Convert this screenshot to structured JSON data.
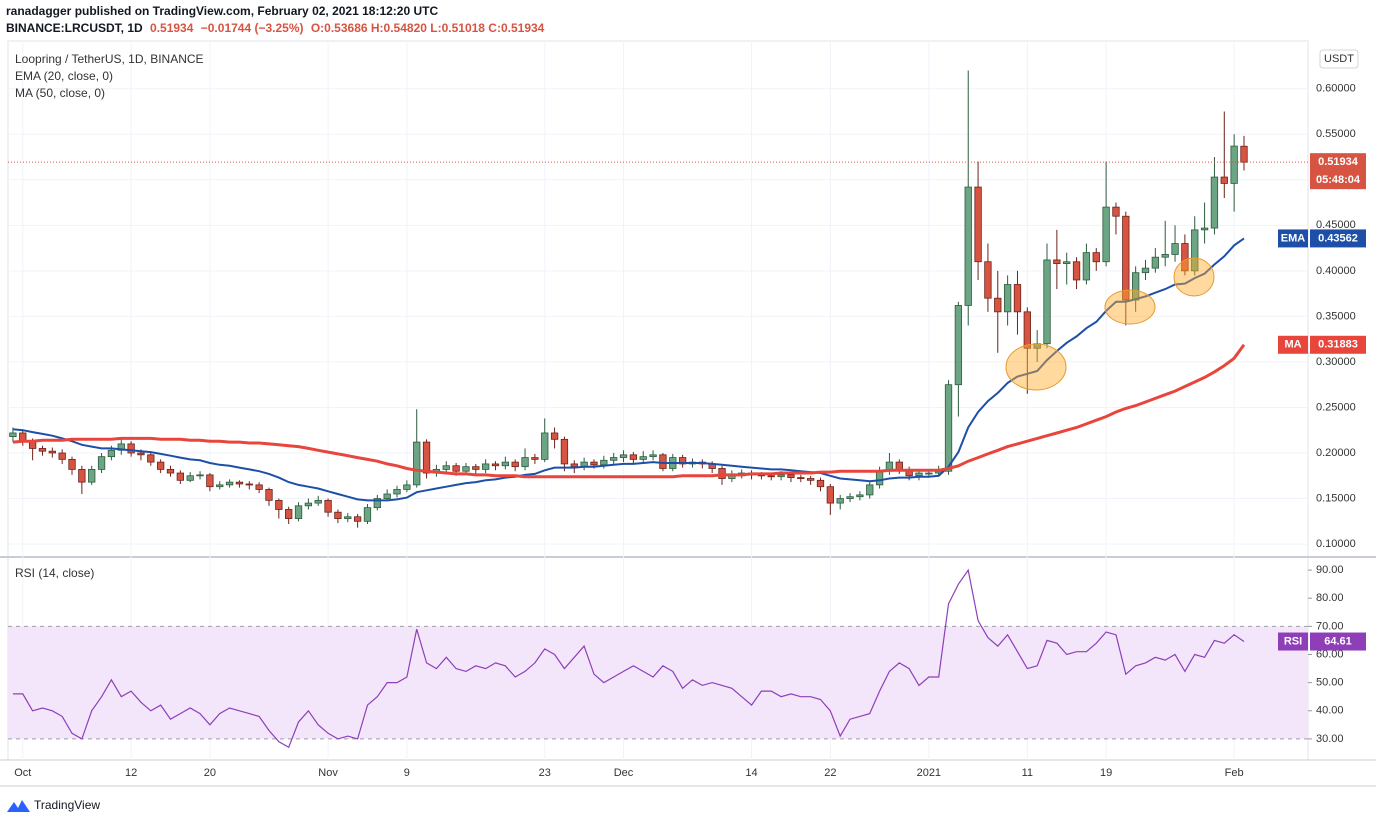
{
  "header": {
    "publisher": "ranadagger published on TradingView.com, February 02, 2021 18:12:20 UTC",
    "symbol": "BINANCE:LRCUSDT, 1D",
    "price": "0.51934",
    "change": "−0.01744 (−3.25%)",
    "ohlc": "O:0.53686 H:0.54820 L:0.51018 C:0.51934"
  },
  "footer": {
    "brand": "TradingView"
  },
  "chart_data": [
    {
      "type": "candlestick",
      "title": "Loopring / TetherUS, 1D, BINANCE",
      "unit": "USDT",
      "last_price_label": "0.51934",
      "countdown": "05:48:04",
      "up_color": "#6ba583",
      "down_color": "#d75442",
      "grid": true,
      "categories": [
        null,
        "Oct",
        null,
        null,
        null,
        null,
        null,
        null,
        null,
        null,
        null,
        null,
        "12",
        null,
        null,
        null,
        null,
        null,
        null,
        null,
        "20",
        null,
        null,
        null,
        null,
        null,
        null,
        null,
        null,
        null,
        null,
        null,
        "Nov",
        null,
        null,
        null,
        null,
        null,
        null,
        null,
        "9",
        null,
        null,
        null,
        null,
        null,
        null,
        null,
        null,
        null,
        null,
        null,
        null,
        null,
        "23",
        null,
        null,
        null,
        null,
        null,
        null,
        null,
        "Dec",
        null,
        null,
        null,
        null,
        null,
        null,
        null,
        null,
        null,
        null,
        null,
        null,
        "14",
        null,
        null,
        null,
        null,
        null,
        null,
        null,
        "22",
        null,
        null,
        null,
        null,
        null,
        null,
        null,
        null,
        null,
        "2021",
        null,
        null,
        null,
        null,
        null,
        null,
        null,
        null,
        null,
        "11",
        null,
        null,
        null,
        null,
        null,
        null,
        null,
        "19",
        null,
        null,
        null,
        null,
        null,
        null,
        null,
        null,
        null,
        null,
        null,
        null,
        "Feb",
        null
      ],
      "open": [
        0.218,
        0.222,
        0.213,
        0.205,
        0.202,
        0.2,
        0.193,
        0.182,
        0.168,
        0.182,
        0.196,
        0.203,
        0.21,
        0.2,
        0.198,
        0.19,
        0.182,
        0.178,
        0.17,
        0.175,
        0.176,
        0.163,
        0.165,
        0.168,
        0.166,
        0.165,
        0.16,
        0.148,
        0.138,
        0.128,
        0.142,
        0.145,
        0.148,
        0.135,
        0.128,
        0.13,
        0.125,
        0.14,
        0.15,
        0.155,
        0.16,
        0.165,
        0.212,
        0.178,
        0.182,
        0.186,
        0.18,
        0.185,
        0.182,
        0.188,
        0.186,
        0.19,
        0.185,
        0.195,
        0.193,
        0.222,
        0.215,
        0.188,
        0.185,
        0.19,
        0.187,
        0.192,
        0.195,
        0.198,
        0.193,
        0.196,
        0.198,
        0.183,
        0.195,
        0.188,
        0.19,
        0.188,
        0.183,
        0.172,
        0.175,
        0.178,
        0.176,
        0.175,
        0.174,
        0.176,
        0.173,
        0.172,
        0.17,
        0.163,
        0.145,
        0.15,
        0.152,
        0.154,
        0.165,
        0.18,
        0.19,
        0.182,
        0.175,
        0.178,
        0.178,
        0.18,
        0.275,
        0.362,
        0.492,
        0.41,
        0.37,
        0.355,
        0.385,
        0.355,
        0.315,
        0.32,
        0.412,
        0.408,
        0.41,
        0.39,
        0.42,
        0.41,
        0.47,
        0.46,
        0.368,
        0.398,
        0.403,
        0.415,
        0.418,
        0.43,
        0.4,
        0.445,
        0.447,
        0.503,
        0.496,
        0.53686
      ],
      "high": [
        0.228,
        0.226,
        0.216,
        0.208,
        0.206,
        0.204,
        0.196,
        0.186,
        0.186,
        0.2,
        0.208,
        0.215,
        0.213,
        0.204,
        0.201,
        0.193,
        0.186,
        0.181,
        0.179,
        0.18,
        0.178,
        0.169,
        0.171,
        0.17,
        0.169,
        0.168,
        0.162,
        0.15,
        0.141,
        0.146,
        0.15,
        0.153,
        0.15,
        0.138,
        0.134,
        0.133,
        0.144,
        0.154,
        0.16,
        0.164,
        0.17,
        0.248,
        0.215,
        0.187,
        0.191,
        0.189,
        0.189,
        0.188,
        0.193,
        0.191,
        0.196,
        0.193,
        0.205,
        0.199,
        0.238,
        0.228,
        0.218,
        0.192,
        0.195,
        0.193,
        0.197,
        0.2,
        0.203,
        0.201,
        0.202,
        0.203,
        0.2,
        0.199,
        0.198,
        0.194,
        0.193,
        0.191,
        0.186,
        0.181,
        0.182,
        0.181,
        0.179,
        0.178,
        0.18,
        0.179,
        0.176,
        0.175,
        0.173,
        0.166,
        0.154,
        0.156,
        0.158,
        0.17,
        0.185,
        0.2,
        0.193,
        0.185,
        0.182,
        0.182,
        0.186,
        0.28,
        0.366,
        0.62,
        0.52,
        0.43,
        0.4,
        0.395,
        0.4,
        0.36,
        0.335,
        0.43,
        0.445,
        0.42,
        0.415,
        0.43,
        0.425,
        0.52,
        0.475,
        0.465,
        0.405,
        0.412,
        0.425,
        0.455,
        0.45,
        0.44,
        0.46,
        0.475,
        0.525,
        0.575,
        0.55,
        0.5482
      ],
      "low": [
        0.212,
        0.208,
        0.192,
        0.197,
        0.195,
        0.188,
        0.176,
        0.155,
        0.165,
        0.178,
        0.192,
        0.198,
        0.196,
        0.192,
        0.186,
        0.178,
        0.174,
        0.166,
        0.168,
        0.171,
        0.158,
        0.16,
        0.162,
        0.162,
        0.16,
        0.156,
        0.142,
        0.128,
        0.122,
        0.125,
        0.138,
        0.142,
        0.13,
        0.123,
        0.124,
        0.118,
        0.122,
        0.137,
        0.147,
        0.151,
        0.157,
        0.162,
        0.172,
        0.174,
        0.178,
        0.175,
        0.176,
        0.177,
        0.178,
        0.181,
        0.182,
        0.18,
        0.181,
        0.188,
        0.19,
        0.205,
        0.18,
        0.178,
        0.181,
        0.183,
        0.183,
        0.188,
        0.19,
        0.188,
        0.189,
        0.192,
        0.18,
        0.18,
        0.184,
        0.184,
        0.183,
        0.178,
        0.165,
        0.168,
        0.172,
        0.171,
        0.171,
        0.17,
        0.17,
        0.168,
        0.168,
        0.165,
        0.158,
        0.132,
        0.138,
        0.146,
        0.148,
        0.15,
        0.161,
        0.176,
        0.177,
        0.17,
        0.17,
        0.173,
        0.174,
        0.176,
        0.24,
        0.34,
        0.39,
        0.355,
        0.31,
        0.34,
        0.33,
        0.265,
        0.3,
        0.315,
        0.38,
        0.385,
        0.38,
        0.385,
        0.4,
        0.405,
        0.44,
        0.34,
        0.355,
        0.39,
        0.398,
        0.405,
        0.41,
        0.395,
        0.395,
        0.43,
        0.44,
        0.48,
        0.465,
        0.51018
      ],
      "close": [
        0.222,
        0.213,
        0.205,
        0.202,
        0.2,
        0.193,
        0.182,
        0.168,
        0.182,
        0.196,
        0.203,
        0.21,
        0.2,
        0.198,
        0.19,
        0.182,
        0.178,
        0.17,
        0.175,
        0.176,
        0.163,
        0.165,
        0.168,
        0.166,
        0.165,
        0.16,
        0.148,
        0.138,
        0.128,
        0.142,
        0.145,
        0.148,
        0.135,
        0.128,
        0.13,
        0.125,
        0.14,
        0.15,
        0.155,
        0.16,
        0.165,
        0.212,
        0.178,
        0.182,
        0.186,
        0.18,
        0.185,
        0.182,
        0.188,
        0.186,
        0.19,
        0.185,
        0.195,
        0.193,
        0.222,
        0.215,
        0.188,
        0.185,
        0.19,
        0.187,
        0.192,
        0.195,
        0.198,
        0.193,
        0.196,
        0.198,
        0.183,
        0.195,
        0.188,
        0.19,
        0.188,
        0.183,
        0.172,
        0.175,
        0.178,
        0.176,
        0.175,
        0.174,
        0.176,
        0.173,
        0.172,
        0.17,
        0.163,
        0.145,
        0.15,
        0.152,
        0.154,
        0.165,
        0.18,
        0.19,
        0.182,
        0.175,
        0.178,
        0.178,
        0.18,
        0.275,
        0.362,
        0.492,
        0.41,
        0.37,
        0.355,
        0.385,
        0.355,
        0.315,
        0.32,
        0.412,
        0.408,
        0.41,
        0.39,
        0.42,
        0.41,
        0.47,
        0.46,
        0.368,
        0.398,
        0.403,
        0.415,
        0.418,
        0.43,
        0.4,
        0.445,
        0.447,
        0.503,
        0.496,
        0.537,
        0.51934
      ],
      "overlays": [
        {
          "name": "EMA (20, close, 0)",
          "short_name": "EMA",
          "value_label": "0.43562",
          "color": "#1e4fa8",
          "values": [
            0.226,
            0.225,
            0.223,
            0.221,
            0.219,
            0.216,
            0.213,
            0.209,
            0.207,
            0.205,
            0.205,
            0.204,
            0.203,
            0.202,
            0.201,
            0.199,
            0.197,
            0.195,
            0.193,
            0.192,
            0.189,
            0.187,
            0.186,
            0.184,
            0.182,
            0.18,
            0.177,
            0.173,
            0.168,
            0.165,
            0.163,
            0.161,
            0.158,
            0.155,
            0.152,
            0.149,
            0.148,
            0.148,
            0.148,
            0.149,
            0.151,
            0.157,
            0.159,
            0.161,
            0.163,
            0.165,
            0.167,
            0.168,
            0.17,
            0.171,
            0.173,
            0.174,
            0.176,
            0.177,
            0.181,
            0.184,
            0.184,
            0.184,
            0.185,
            0.185,
            0.186,
            0.187,
            0.188,
            0.188,
            0.189,
            0.19,
            0.189,
            0.189,
            0.189,
            0.189,
            0.189,
            0.188,
            0.187,
            0.186,
            0.185,
            0.184,
            0.183,
            0.182,
            0.182,
            0.181,
            0.18,
            0.179,
            0.178,
            0.175,
            0.172,
            0.171,
            0.17,
            0.169,
            0.17,
            0.172,
            0.173,
            0.173,
            0.174,
            0.174,
            0.175,
            0.185,
            0.201,
            0.228,
            0.245,
            0.257,
            0.266,
            0.277,
            0.284,
            0.287,
            0.29,
            0.302,
            0.312,
            0.321,
            0.328,
            0.337,
            0.344,
            0.356,
            0.366,
            0.366,
            0.369,
            0.372,
            0.376,
            0.38,
            0.385,
            0.386,
            0.392,
            0.397,
            0.407,
            0.416,
            0.428,
            0.43562
          ]
        },
        {
          "name": "MA (50, close, 0)",
          "short_name": "MA",
          "value_label": "0.31883",
          "color": "#e8453c",
          "values": [
            0.212,
            0.213,
            0.213,
            0.214,
            0.214,
            0.214,
            0.215,
            0.215,
            0.215,
            0.215,
            0.215,
            0.216,
            0.216,
            0.216,
            0.216,
            0.215,
            0.215,
            0.215,
            0.214,
            0.214,
            0.213,
            0.213,
            0.212,
            0.212,
            0.211,
            0.211,
            0.21,
            0.209,
            0.208,
            0.207,
            0.205,
            0.203,
            0.201,
            0.199,
            0.197,
            0.195,
            0.193,
            0.191,
            0.188,
            0.186,
            0.183,
            0.181,
            0.18,
            0.179,
            0.178,
            0.177,
            0.177,
            0.176,
            0.176,
            0.175,
            0.175,
            0.175,
            0.174,
            0.174,
            0.174,
            0.174,
            0.174,
            0.174,
            0.174,
            0.174,
            0.174,
            0.174,
            0.174,
            0.174,
            0.174,
            0.174,
            0.174,
            0.174,
            0.175,
            0.175,
            0.175,
            0.175,
            0.176,
            0.176,
            0.176,
            0.177,
            0.177,
            0.177,
            0.178,
            0.178,
            0.178,
            0.178,
            0.179,
            0.179,
            0.18,
            0.18,
            0.18,
            0.18,
            0.18,
            0.181,
            0.181,
            0.181,
            0.181,
            0.181,
            0.181,
            0.183,
            0.186,
            0.191,
            0.195,
            0.199,
            0.203,
            0.207,
            0.21,
            0.213,
            0.216,
            0.219,
            0.222,
            0.225,
            0.228,
            0.232,
            0.236,
            0.24,
            0.245,
            0.249,
            0.252,
            0.256,
            0.26,
            0.264,
            0.268,
            0.273,
            0.278,
            0.283,
            0.289,
            0.296,
            0.304,
            0.31883
          ]
        }
      ],
      "ylim": [
        0.088,
        0.648
      ],
      "yticks": [
        {
          "value": 0.1,
          "label": "0.10000"
        },
        {
          "value": 0.15,
          "label": "0.15000"
        },
        {
          "value": 0.2,
          "label": "0.20000"
        },
        {
          "value": 0.25,
          "label": "0.25000"
        },
        {
          "value": 0.3,
          "label": "0.30000"
        },
        {
          "value": 0.35,
          "label": "0.35000"
        },
        {
          "value": 0.4,
          "label": "0.40000"
        },
        {
          "value": 0.45,
          "label": "0.45000"
        },
        {
          "value": 0.5,
          "label": "0.50000"
        },
        {
          "value": 0.55,
          "label": "0.55000"
        },
        {
          "value": 0.6,
          "label": "0.60000"
        }
      ]
    },
    {
      "type": "line",
      "title": "RSI (14, close)",
      "short_name": "RSI",
      "value_label": "64.61",
      "color": "#8e3fb8",
      "band": [
        30,
        70
      ],
      "band_color": "#f3e6fb",
      "values": [
        46,
        46,
        40,
        41,
        40,
        38,
        32,
        30,
        40,
        45,
        51,
        45,
        47,
        43,
        40,
        42,
        37,
        39,
        41,
        39,
        35,
        39,
        41,
        40,
        39,
        38,
        33,
        29,
        27,
        36,
        40,
        35,
        32,
        30,
        31,
        30,
        42,
        45,
        50,
        50,
        52,
        69,
        57,
        55,
        59,
        55,
        54,
        56,
        55,
        57,
        56,
        52,
        54,
        57,
        62,
        60,
        55,
        59,
        63,
        53,
        50,
        52,
        54,
        56,
        54,
        52,
        56,
        54,
        48,
        51,
        49,
        50,
        49,
        48,
        45,
        42,
        47,
        47,
        45,
        46,
        45,
        45,
        44,
        40,
        31,
        37,
        38,
        39,
        47,
        54,
        57,
        55,
        49,
        52,
        52,
        78,
        85,
        90,
        72,
        66,
        63,
        67,
        61,
        55,
        56,
        65,
        64,
        60,
        61,
        61,
        64,
        68,
        67,
        53,
        56,
        57,
        59,
        58,
        60,
        54,
        60,
        59,
        65,
        64,
        67,
        64.61
      ],
      "ylim": [
        22.5,
        94.3
      ],
      "yticks": [
        {
          "value": 30,
          "label": "30.00"
        },
        {
          "value": 40,
          "label": "40.00"
        },
        {
          "value": 50,
          "label": "50.00"
        },
        {
          "value": 60,
          "label": "60.00"
        },
        {
          "value": 70,
          "label": "70.00"
        },
        {
          "value": 80,
          "label": "80.00"
        },
        {
          "value": 90,
          "label": "90.00"
        }
      ]
    }
  ]
}
